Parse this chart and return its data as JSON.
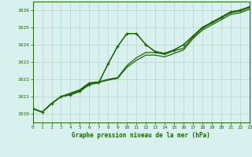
{
  "title": "Graphe pression niveau de la mer (hPa)",
  "bg_color": "#d8f0ee",
  "grid_color": "#c8d8d0",
  "line_color": "#1a6600",
  "xlim": [
    0,
    23
  ],
  "ylim": [
    1019.5,
    1026.5
  ],
  "yticks": [
    1020,
    1021,
    1022,
    1023,
    1024,
    1025,
    1026
  ],
  "xticks": [
    0,
    1,
    2,
    3,
    4,
    5,
    6,
    7,
    8,
    9,
    10,
    11,
    12,
    13,
    14,
    15,
    16,
    17,
    18,
    19,
    20,
    21,
    22,
    23
  ],
  "series1_x": [
    0,
    1,
    2,
    3,
    4,
    5,
    6,
    7,
    8,
    9,
    10,
    11,
    12,
    13,
    14,
    15,
    16,
    17,
    18,
    19,
    20,
    21,
    22,
    23
  ],
  "series1_y": [
    1020.3,
    1020.1,
    1020.6,
    1021.0,
    1021.1,
    1021.3,
    1021.7,
    1021.8,
    1022.9,
    1023.9,
    1024.65,
    1024.65,
    1024.0,
    1023.6,
    1023.5,
    1023.7,
    1024.0,
    1024.5,
    1025.0,
    1025.3,
    1025.6,
    1025.9,
    1026.0,
    1026.2
  ],
  "series2_x": [
    0,
    1,
    2,
    3,
    4,
    5,
    6,
    7,
    8,
    9,
    10,
    11,
    12,
    13,
    14,
    15,
    16,
    17,
    18,
    19,
    20,
    21,
    22,
    23
  ],
  "series2_y": [
    1020.3,
    1020.1,
    1020.6,
    1021.0,
    1021.2,
    1021.4,
    1021.8,
    1021.85,
    1022.0,
    1022.1,
    1022.8,
    1023.25,
    1023.55,
    1023.55,
    1023.45,
    1023.65,
    1023.8,
    1024.45,
    1024.95,
    1025.25,
    1025.55,
    1025.85,
    1025.95,
    1026.15
  ],
  "series3_x": [
    0,
    1,
    2,
    3,
    4,
    5,
    6,
    7,
    8,
    9,
    10,
    11,
    12,
    13,
    14,
    15,
    16,
    17,
    18,
    19,
    20,
    21,
    22,
    23
  ],
  "series3_y": [
    1020.3,
    1020.1,
    1020.6,
    1021.0,
    1021.15,
    1021.35,
    1021.75,
    1021.82,
    1021.95,
    1022.05,
    1022.7,
    1023.1,
    1023.4,
    1023.4,
    1023.3,
    1023.5,
    1023.7,
    1024.35,
    1024.85,
    1025.15,
    1025.45,
    1025.75,
    1025.85,
    1026.05
  ],
  "marker_x": [
    0,
    1,
    2,
    3,
    4,
    5,
    6,
    7,
    8,
    9,
    10,
    11,
    12,
    13,
    14,
    15,
    16,
    17,
    18,
    19,
    20,
    21,
    22,
    23
  ],
  "marker_y": [
    1020.3,
    1020.1,
    1020.6,
    1021.0,
    1021.1,
    1021.3,
    1021.7,
    1021.8,
    1022.9,
    1023.9,
    1024.65,
    1024.65,
    1024.0,
    1023.6,
    1023.5,
    1023.7,
    1024.0,
    1024.5,
    1025.0,
    1025.3,
    1025.6,
    1025.9,
    1026.0,
    1026.2
  ]
}
